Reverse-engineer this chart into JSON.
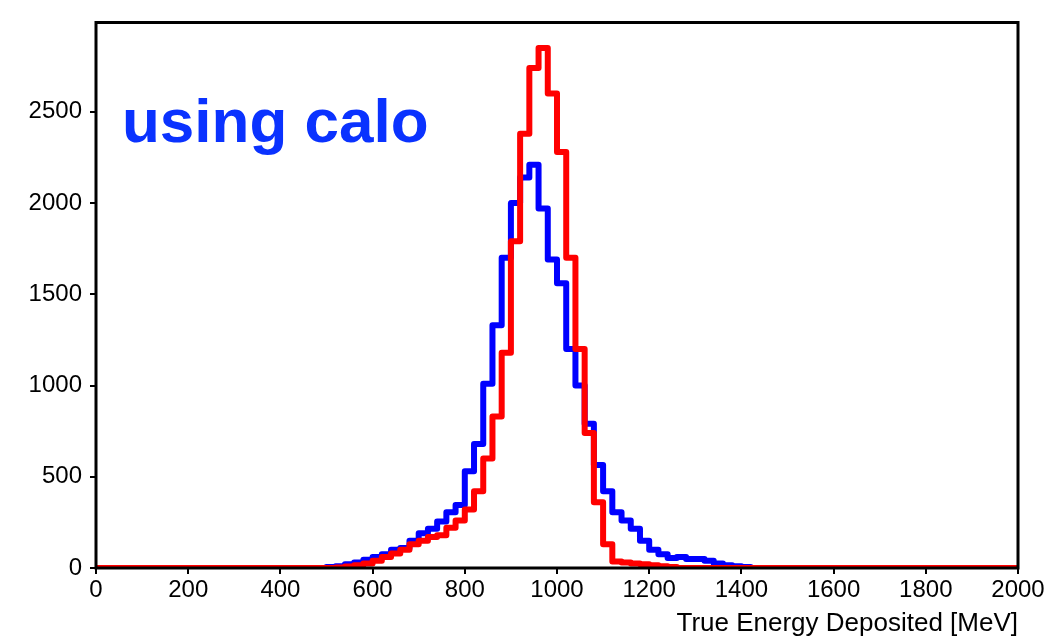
{
  "chart_data": {
    "type": "histogram",
    "xlabel": "True Energy Deposited [MeV]",
    "annotations": [
      "using calo"
    ],
    "bins": [
      0,
      20,
      40,
      60,
      80,
      100,
      120,
      140,
      160,
      180,
      200,
      220,
      240,
      260,
      280,
      300,
      320,
      340,
      360,
      380,
      400,
      420,
      440,
      460,
      480,
      500,
      520,
      540,
      560,
      580,
      600,
      620,
      640,
      660,
      680,
      700,
      720,
      740,
      760,
      780,
      800,
      820,
      840,
      860,
      880,
      900,
      920,
      940,
      960,
      980,
      1000,
      1020,
      1040,
      1060,
      1080,
      1100,
      1120,
      1140,
      1160,
      1180,
      1200,
      1220,
      1240,
      1260,
      1280,
      1300,
      1320,
      1340,
      1360,
      1380,
      1400,
      1420,
      1440,
      1460,
      1480,
      1500,
      1520,
      1540,
      1560,
      1580,
      1600,
      1620,
      1640,
      1660,
      1680,
      1700,
      1720,
      1740,
      1760,
      1780,
      1800,
      1820,
      1840,
      1860,
      1880,
      1900,
      1920,
      1940,
      1960,
      1980,
      2000
    ],
    "series": [
      {
        "color": "#ff0000",
        "values": [
          0,
          0,
          0,
          0,
          0,
          0,
          0,
          0,
          0,
          0,
          0,
          0,
          0,
          0,
          0,
          0,
          0,
          0,
          0,
          0,
          0,
          0,
          0,
          0,
          0,
          0,
          3,
          8,
          15,
          25,
          40,
          60,
          80,
          100,
          130,
          150,
          170,
          180,
          220,
          260,
          320,
          420,
          600,
          830,
          1180,
          1790,
          2380,
          2740,
          2850,
          2600,
          2280,
          1700,
          1200,
          740,
          360,
          130,
          35,
          30,
          25,
          20,
          15,
          10,
          5,
          0,
          0,
          0,
          0,
          0,
          0,
          0,
          0,
          0,
          0,
          0,
          0,
          0,
          0,
          0,
          0,
          0,
          0,
          0,
          0,
          0,
          0,
          0,
          0,
          0,
          0,
          0,
          0,
          0,
          0,
          0,
          0,
          0,
          0,
          0,
          0,
          0
        ]
      },
      {
        "color": "#0000ff",
        "values": [
          0,
          0,
          0,
          0,
          0,
          0,
          0,
          0,
          0,
          0,
          0,
          0,
          0,
          0,
          0,
          0,
          0,
          0,
          0,
          0,
          0,
          0,
          0,
          0,
          0,
          5,
          10,
          20,
          30,
          45,
          60,
          75,
          100,
          110,
          150,
          190,
          215,
          255,
          305,
          345,
          530,
          680,
          1010,
          1330,
          1700,
          2000,
          2140,
          2210,
          1970,
          1690,
          1560,
          1200,
          1000,
          790,
          565,
          420,
          305,
          260,
          215,
          150,
          100,
          75,
          55,
          60,
          50,
          50,
          40,
          25,
          15,
          10,
          5,
          0,
          0,
          0,
          0,
          0,
          0,
          0,
          0,
          0,
          0,
          0,
          0,
          0,
          0,
          0,
          0,
          0,
          0,
          0,
          0,
          0,
          0,
          0,
          0,
          0,
          0,
          0,
          0,
          0
        ]
      }
    ],
    "xlim": [
      0,
      2000
    ],
    "xticks": [
      0,
      200,
      400,
      600,
      800,
      1000,
      1200,
      1400,
      1600,
      1800,
      2000
    ],
    "ylim": [
      0,
      2990
    ],
    "yticks": [
      0,
      500,
      1000,
      1500,
      2000,
      2500
    ],
    "grid": false,
    "legend": false
  }
}
